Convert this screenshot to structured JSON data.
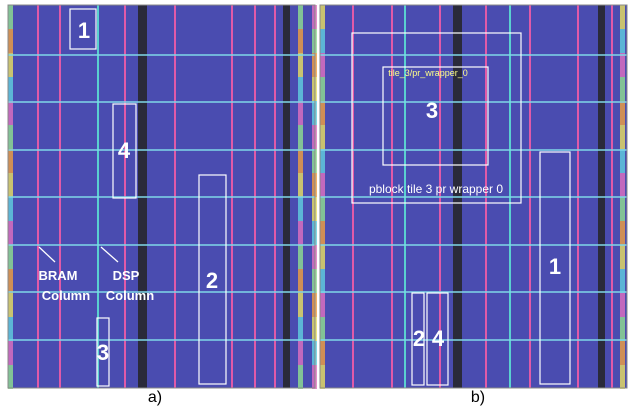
{
  "panel_a": {
    "caption": "a)",
    "regions": [
      "1",
      "4",
      "2",
      "3"
    ],
    "bram_label": [
      "BRAM",
      "Column"
    ],
    "dsp_label": [
      "DSP",
      "Column"
    ]
  },
  "panel_b": {
    "caption": "b)",
    "partition_label": "tile_3/pr_wrapper_0",
    "pblock_label": "pblock tile 3 pr wrapper 0",
    "regions": [
      "3",
      "1",
      "2",
      "4"
    ]
  }
}
